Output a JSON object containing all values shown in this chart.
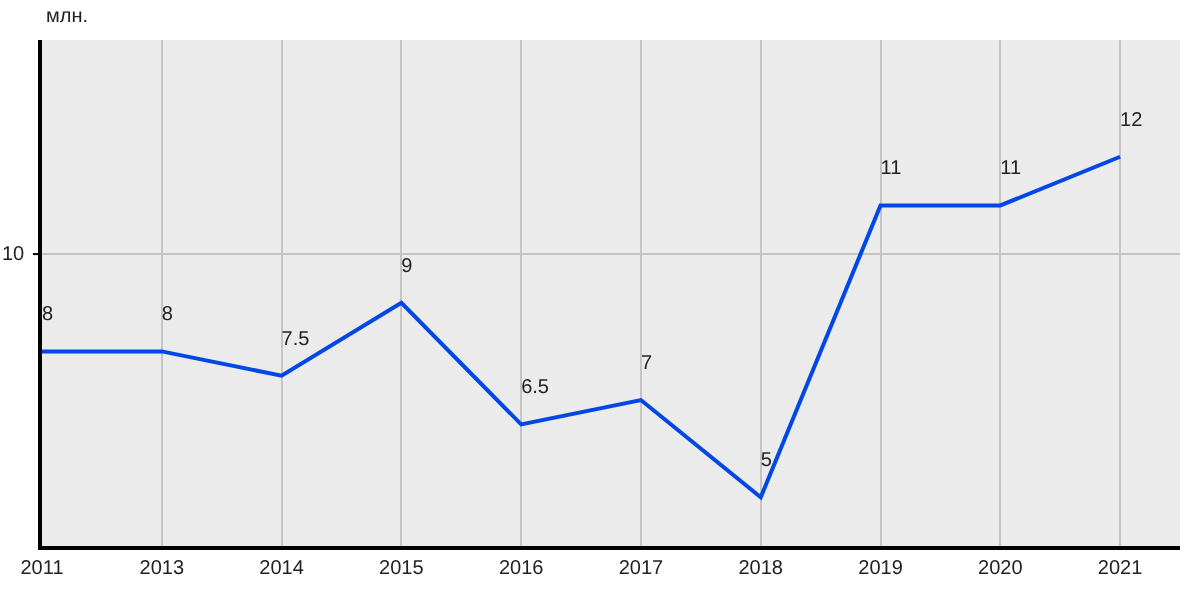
{
  "chart_data": {
    "type": "line",
    "annotations": [
      "млн."
    ],
    "categories": [
      "2011",
      "2013",
      "2014",
      "2015",
      "2016",
      "2017",
      "2018",
      "2019",
      "2020",
      "2021"
    ],
    "series": [
      {
        "color": "#0047e6",
        "values": [
          8,
          8,
          7.5,
          9,
          6.5,
          7,
          5,
          11,
          11,
          12
        ]
      }
    ],
    "ref_lines": [
      {
        "axis": "y",
        "value": 10,
        "label": "10",
        "color": "#c4c4c4"
      }
    ],
    "grid": "x",
    "data_labels": true,
    "marker": "none",
    "line_style": "solid"
  }
}
